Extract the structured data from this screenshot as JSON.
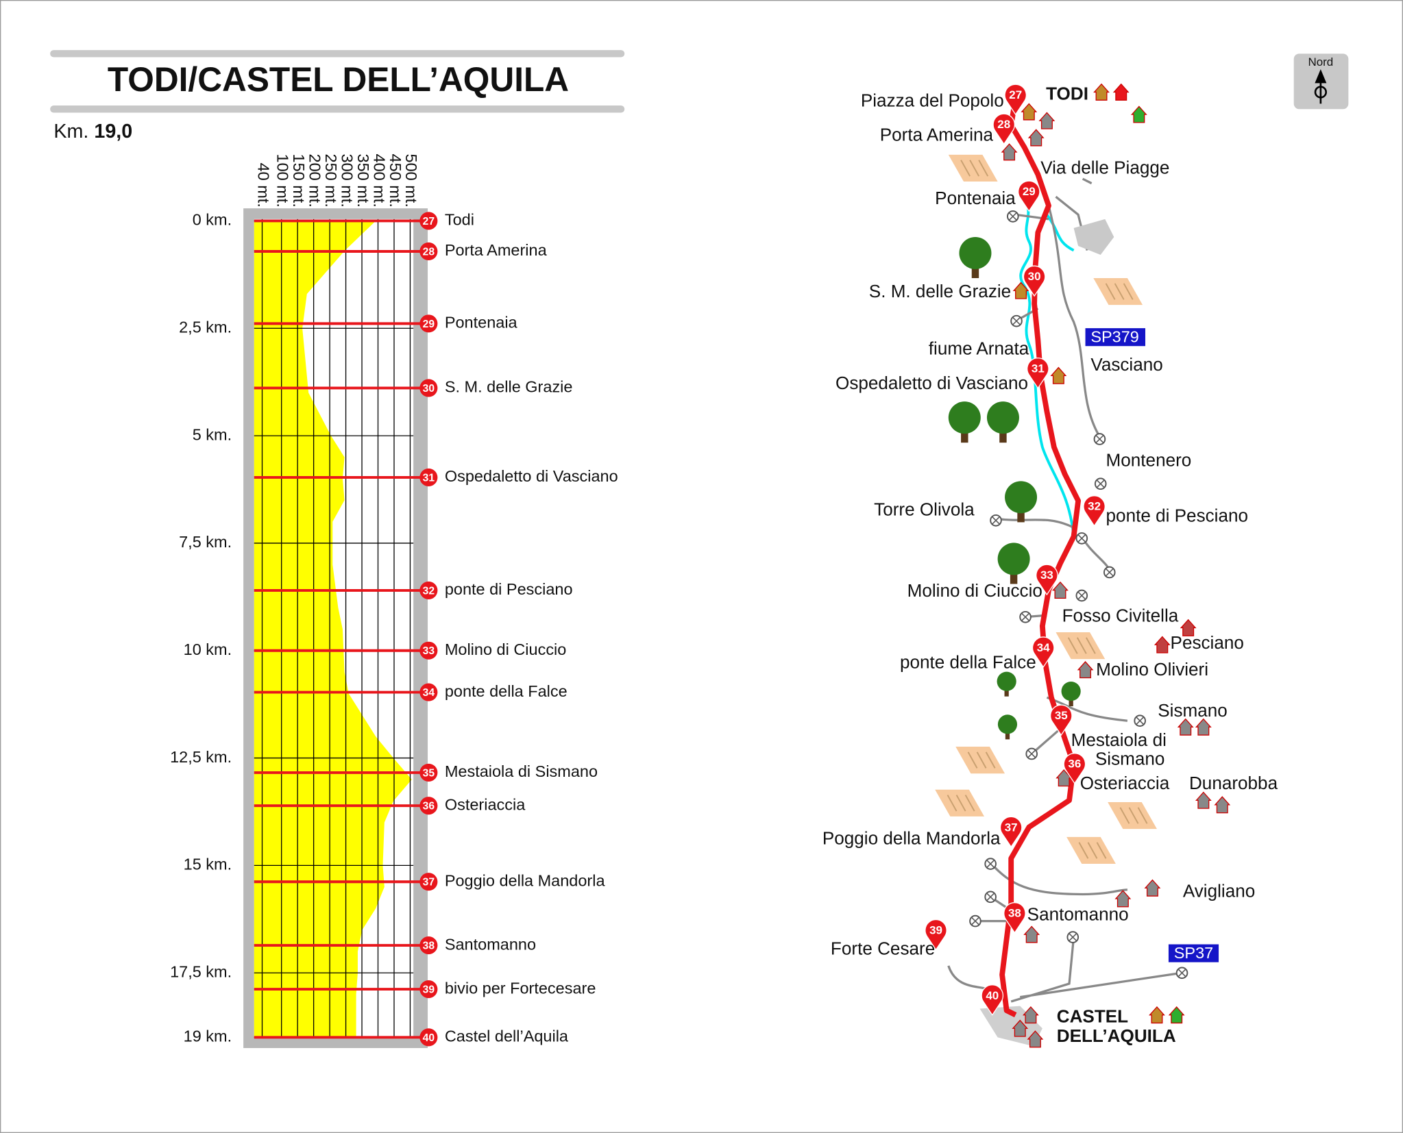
{
  "header": {
    "title": "TODI/CASTEL DELL’AQUILA",
    "distance_label": "Km.",
    "distance": "19,0"
  },
  "profile": {
    "km_range": [
      0,
      19
    ],
    "alt_range": [
      15,
      510
    ],
    "km_ticks": [
      {
        "value": 0,
        "label": "0 km."
      },
      {
        "value": 2.5,
        "label": "2,5 km."
      },
      {
        "value": 5,
        "label": "5 km."
      },
      {
        "value": 7.5,
        "label": "7,5 km."
      },
      {
        "value": 10,
        "label": "10 km."
      },
      {
        "value": 12.5,
        "label": "12,5 km."
      },
      {
        "value": 15,
        "label": "15 km."
      },
      {
        "value": 17.5,
        "label": "17,5 km."
      },
      {
        "value": 19,
        "label": "19 km."
      }
    ],
    "alt_ticks": [
      {
        "value": 40,
        "label": "40 mt."
      },
      {
        "value": 100,
        "label": "100 mt."
      },
      {
        "value": 150,
        "label": "150 mt."
      },
      {
        "value": 200,
        "label": "200 mt."
      },
      {
        "value": 250,
        "label": "250 mt."
      },
      {
        "value": 300,
        "label": "300 mt."
      },
      {
        "value": 350,
        "label": "350 mt."
      },
      {
        "value": 400,
        "label": "400 mt."
      },
      {
        "value": 450,
        "label": "450 mt."
      },
      {
        "value": 500,
        "label": "500 mt."
      }
    ],
    "elevation": {
      "km": [
        0,
        0.7,
        1.7,
        2.5,
        4,
        5,
        5.5,
        6,
        6.5,
        7,
        8,
        9,
        9.5,
        10.5,
        11,
        11.5,
        12,
        12.5,
        13,
        13.5,
        14,
        15,
        15.5,
        16,
        16.5,
        17,
        17.5,
        18,
        19
      ],
      "alt": [
        393,
        296,
        179,
        165,
        184,
        254,
        296,
        290,
        296,
        259,
        259,
        276,
        290,
        296,
        309,
        351,
        393,
        448,
        505,
        448,
        420,
        415,
        420,
        393,
        351,
        337,
        337,
        332,
        332
      ]
    },
    "waypoints": [
      {
        "number": 27,
        "name": "Todi",
        "km": 0
      },
      {
        "number": 28,
        "name": "Porta Amerina",
        "km": 0.71
      },
      {
        "number": 29,
        "name": "Pontenaia",
        "km": 2.39
      },
      {
        "number": 30,
        "name": "S. M. delle Grazie",
        "km": 3.89
      },
      {
        "number": 31,
        "name": "Ospedaletto di Vasciano",
        "km": 5.97
      },
      {
        "number": 32,
        "name": "ponte di Pesciano",
        "km": 8.6
      },
      {
        "number": 33,
        "name": "Molino di Ciuccio",
        "km": 10.0
      },
      {
        "number": 34,
        "name": "ponte della Falce",
        "km": 10.97
      },
      {
        "number": 35,
        "name": "Mestaiola di Sismano",
        "km": 12.84
      },
      {
        "number": 36,
        "name": "Osteriaccia",
        "km": 13.61
      },
      {
        "number": 37,
        "name": "Poggio della Mandorla",
        "km": 15.38
      },
      {
        "number": 38,
        "name": "Santomanno",
        "km": 16.86
      },
      {
        "number": 39,
        "name": "bivio per Fortecesare",
        "km": 17.88
      },
      {
        "number": 40,
        "name": "Castel dell’Aquila",
        "km": 19
      }
    ]
  },
  "map": {
    "north": "Nord",
    "town_start": "TODI",
    "town_end": [
      "CASTEL",
      "DELL’AQUILA"
    ],
    "roads": [
      "SP379",
      "SP37"
    ],
    "places": [
      "Piazza del Popolo",
      "Porta Amerina",
      "Via delle Piagge",
      "Pontenaia",
      "S. M. delle Grazie",
      "fiume Arnata",
      "Vasciano",
      "Ospedaletto di Vasciano",
      "Montenero",
      "Torre Olivola",
      "ponte di Pesciano",
      "Molino di Ciuccio",
      "Fosso Civitella",
      "Pesciano",
      "ponte della Falce",
      "Molino Olivieri",
      "Sismano",
      "Osteriaccia",
      "Dunarobba",
      "Poggio della Mandorla",
      "Avigliano",
      "Santomanno",
      "Forte Cesare"
    ],
    "place_multiline": [
      "Mestaiola di",
      "Sismano"
    ]
  }
}
